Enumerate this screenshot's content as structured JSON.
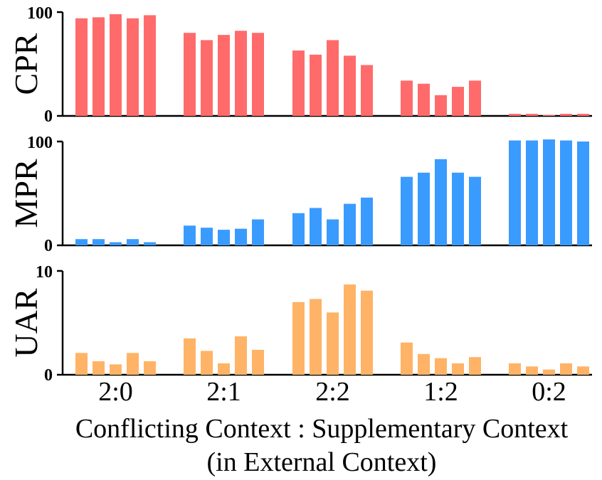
{
  "chart_data": {
    "type": "bar",
    "title": "",
    "categories": [
      "2:0",
      "2:1",
      "2:2",
      "1:2",
      "0:2"
    ],
    "xlabel_lines": [
      "Conflicting Context : Supplementary Context",
      "(in External Context)"
    ],
    "bars_per_group": 5,
    "panels": [
      {
        "ylabel": "CPR",
        "color": "#ff6b6b",
        "ylim": [
          0,
          100
        ],
        "yticks": [
          "0",
          "100"
        ],
        "values": [
          [
            94,
            95,
            98,
            94,
            97
          ],
          [
            80,
            73,
            78,
            82,
            80
          ],
          [
            63,
            59,
            73,
            58,
            49
          ],
          [
            34,
            31,
            20,
            28,
            34
          ],
          [
            2,
            2,
            1,
            2,
            2
          ]
        ]
      },
      {
        "ylabel": "MPR",
        "color": "#3a9bff",
        "ylim": [
          0,
          100
        ],
        "yticks": [
          "0",
          "100"
        ],
        "values": [
          [
            6,
            6,
            3,
            6,
            3
          ],
          [
            19,
            17,
            15,
            16,
            25
          ],
          [
            31,
            36,
            25,
            40,
            46
          ],
          [
            66,
            70,
            83,
            70,
            66
          ],
          [
            101,
            101,
            102,
            101,
            100
          ]
        ]
      },
      {
        "ylabel": "UAR",
        "color": "#ffb366",
        "ylim": [
          0,
          10
        ],
        "yticks": [
          "0",
          "10"
        ],
        "values": [
          [
            2.1,
            1.3,
            1.0,
            2.1,
            1.3
          ],
          [
            3.5,
            2.3,
            1.1,
            3.7,
            2.4
          ],
          [
            7.0,
            7.3,
            6.0,
            8.7,
            8.1
          ],
          [
            3.1,
            2.0,
            1.6,
            1.1,
            1.7
          ],
          [
            1.1,
            0.8,
            0.5,
            1.1,
            0.8
          ]
        ]
      }
    ]
  }
}
